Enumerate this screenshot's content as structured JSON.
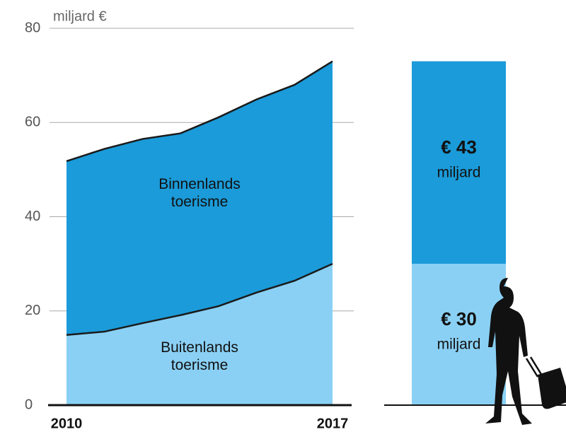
{
  "chart_data": [
    {
      "type": "stacked-area",
      "axis_label": "miljard €",
      "categories": [
        "2010",
        null,
        null,
        null,
        null,
        null,
        null,
        "2017"
      ],
      "series": [
        {
          "name": "Buitenlands toerisme",
          "color": "#8ad0f4",
          "values": [
            14.9,
            15.6,
            17.4,
            19.1,
            21.0,
            23.9,
            26.4,
            30
          ]
        },
        {
          "name": "Binnenlands toerisme",
          "color": "#1b9bd9",
          "values": [
            36.9,
            38.8,
            39.1,
            38.6,
            40.1,
            41.0,
            41.6,
            43
          ]
        }
      ],
      "ylim": [
        0,
        80
      ],
      "yticks": [
        0,
        20,
        40,
        60,
        80
      ],
      "grid": true
    },
    {
      "type": "stacked-bar",
      "values": [
        30,
        43
      ],
      "value_labels": [
        "€ 30",
        "€ 43"
      ],
      "unit_label": "miljard",
      "colors": [
        "#8ad0f4",
        "#1b9bd9"
      ],
      "ylim": [
        0,
        80
      ]
    }
  ]
}
